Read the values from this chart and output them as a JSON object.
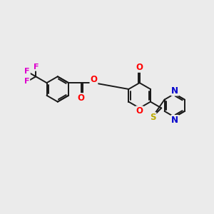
{
  "bg_color": "#ebebeb",
  "bond_color": "#1a1a1a",
  "bond_width": 1.4,
  "atom_colors": {
    "O": "#ff0000",
    "N": "#0000cc",
    "S": "#bbaa00",
    "F": "#dd00cc",
    "C": "#1a1a1a"
  },
  "font_size": 8.5
}
